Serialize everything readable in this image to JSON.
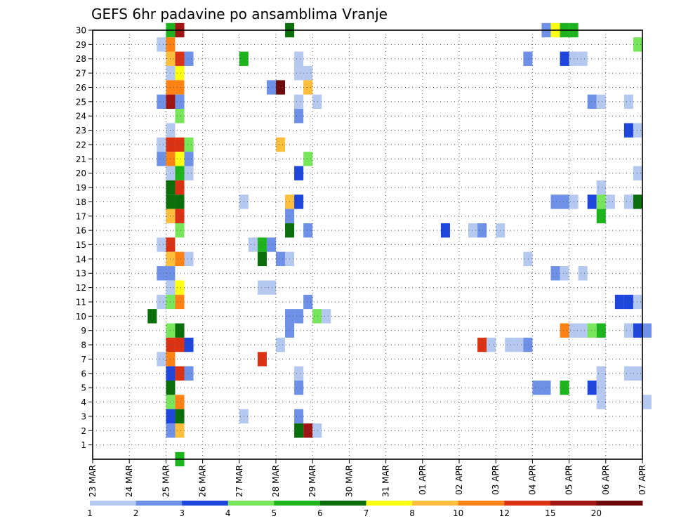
{
  "chart_data": {
    "type": "heatmap",
    "title": "GEFS 6hr padavine po ansamblima Vranje",
    "x_labels": [
      "23 MAR",
      "24 MAR",
      "25 MAR",
      "26 MAR",
      "27 MAR",
      "28 MAR",
      "29 MAR",
      "30 MAR",
      "31 MAR",
      "01 APR",
      "02 APR",
      "03 APR",
      "04 APR",
      "05 APR",
      "06 APR",
      "07 APR"
    ],
    "x_step": "6h",
    "y_labels": [
      "1",
      "2",
      "3",
      "4",
      "5",
      "6",
      "7",
      "8",
      "9",
      "10",
      "11",
      "12",
      "13",
      "14",
      "15",
      "16",
      "17",
      "18",
      "19",
      "20",
      "21",
      "22",
      "23",
      "24",
      "25",
      "26",
      "27",
      "28",
      "29",
      "30"
    ],
    "grid": "dotted",
    "legend": {
      "placement": "bottom",
      "labels": [
        "1",
        "2",
        "3",
        "4",
        "5",
        "6",
        "7",
        "8",
        "10",
        "12",
        "15",
        "20"
      ],
      "colors": [
        "#b4c8f0",
        "#6e90e6",
        "#1e46dc",
        "#78e65a",
        "#1eb41e",
        "#0a6e0a",
        "#ffff14",
        "#ffbe3c",
        "#ff8214",
        "#dc3214",
        "#a01414",
        "#6e0a0a"
      ]
    },
    "cells": [
      {
        "member": 30,
        "step": 8,
        "bin": 5
      },
      {
        "member": 30,
        "step": 9,
        "bin": 11
      },
      {
        "member": 30,
        "step": 21,
        "bin": 6
      },
      {
        "member": 30,
        "step": 49,
        "bin": 2
      },
      {
        "member": 30,
        "step": 50,
        "bin": 7
      },
      {
        "member": 30,
        "step": 51,
        "bin": 5
      },
      {
        "member": 30,
        "step": 52,
        "bin": 5
      },
      {
        "member": 29,
        "step": 7,
        "bin": 1
      },
      {
        "member": 29,
        "step": 8,
        "bin": 9
      },
      {
        "member": 29,
        "step": 59,
        "bin": 4
      },
      {
        "member": 28,
        "step": 8,
        "bin": 8
      },
      {
        "member": 28,
        "step": 9,
        "bin": 10
      },
      {
        "member": 28,
        "step": 10,
        "bin": 2
      },
      {
        "member": 28,
        "step": 16,
        "bin": 5
      },
      {
        "member": 28,
        "step": 22,
        "bin": 1
      },
      {
        "member": 28,
        "step": 47,
        "bin": 2
      },
      {
        "member": 28,
        "step": 51,
        "bin": 3
      },
      {
        "member": 28,
        "step": 52,
        "bin": 1
      },
      {
        "member": 28,
        "step": 53,
        "bin": 1
      },
      {
        "member": 27,
        "step": 8,
        "bin": 1
      },
      {
        "member": 27,
        "step": 9,
        "bin": 7
      },
      {
        "member": 27,
        "step": 22,
        "bin": 1
      },
      {
        "member": 27,
        "step": 23,
        "bin": 1
      },
      {
        "member": 26,
        "step": 8,
        "bin": 9
      },
      {
        "member": 26,
        "step": 9,
        "bin": 9
      },
      {
        "member": 26,
        "step": 19,
        "bin": 2
      },
      {
        "member": 26,
        "step": 20,
        "bin": 12
      },
      {
        "member": 26,
        "step": 23,
        "bin": 8
      },
      {
        "member": 25,
        "step": 7,
        "bin": 2
      },
      {
        "member": 25,
        "step": 8,
        "bin": 11
      },
      {
        "member": 25,
        "step": 9,
        "bin": 2
      },
      {
        "member": 25,
        "step": 22,
        "bin": 1
      },
      {
        "member": 25,
        "step": 24,
        "bin": 1
      },
      {
        "member": 25,
        "step": 54,
        "bin": 2
      },
      {
        "member": 25,
        "step": 55,
        "bin": 1
      },
      {
        "member": 25,
        "step": 58,
        "bin": 1
      },
      {
        "member": 24,
        "step": 9,
        "bin": 4
      },
      {
        "member": 24,
        "step": 22,
        "bin": 2
      },
      {
        "member": 23,
        "step": 8,
        "bin": 1
      },
      {
        "member": 23,
        "step": 58,
        "bin": 3
      },
      {
        "member": 23,
        "step": 59,
        "bin": 1
      },
      {
        "member": 22,
        "step": 7,
        "bin": 1
      },
      {
        "member": 22,
        "step": 8,
        "bin": 10
      },
      {
        "member": 22,
        "step": 9,
        "bin": 10
      },
      {
        "member": 22,
        "step": 10,
        "bin": 4
      },
      {
        "member": 22,
        "step": 20,
        "bin": 8
      },
      {
        "member": 21,
        "step": 7,
        "bin": 2
      },
      {
        "member": 21,
        "step": 8,
        "bin": 9
      },
      {
        "member": 21,
        "step": 9,
        "bin": 7
      },
      {
        "member": 21,
        "step": 10,
        "bin": 2
      },
      {
        "member": 21,
        "step": 23,
        "bin": 4
      },
      {
        "member": 20,
        "step": 8,
        "bin": 1
      },
      {
        "member": 20,
        "step": 9,
        "bin": 5
      },
      {
        "member": 20,
        "step": 10,
        "bin": 1
      },
      {
        "member": 20,
        "step": 22,
        "bin": 3
      },
      {
        "member": 20,
        "step": 59,
        "bin": 1
      },
      {
        "member": 19,
        "step": 8,
        "bin": 6
      },
      {
        "member": 19,
        "step": 9,
        "bin": 10
      },
      {
        "member": 19,
        "step": 55,
        "bin": 1
      },
      {
        "member": 18,
        "step": 8,
        "bin": 6
      },
      {
        "member": 18,
        "step": 9,
        "bin": 6
      },
      {
        "member": 18,
        "step": 16,
        "bin": 1
      },
      {
        "member": 18,
        "step": 21,
        "bin": 8
      },
      {
        "member": 18,
        "step": 22,
        "bin": 3
      },
      {
        "member": 18,
        "step": 50,
        "bin": 2
      },
      {
        "member": 18,
        "step": 51,
        "bin": 2
      },
      {
        "member": 18,
        "step": 52,
        "bin": 1
      },
      {
        "member": 18,
        "step": 54,
        "bin": 3
      },
      {
        "member": 18,
        "step": 55,
        "bin": 4
      },
      {
        "member": 18,
        "step": 56,
        "bin": 1
      },
      {
        "member": 18,
        "step": 58,
        "bin": 1
      },
      {
        "member": 18,
        "step": 59,
        "bin": 6
      },
      {
        "member": 17,
        "step": 8,
        "bin": 8
      },
      {
        "member": 17,
        "step": 9,
        "bin": 10
      },
      {
        "member": 17,
        "step": 21,
        "bin": 2
      },
      {
        "member": 17,
        "step": 55,
        "bin": 5
      },
      {
        "member": 16,
        "step": 9,
        "bin": 4
      },
      {
        "member": 16,
        "step": 21,
        "bin": 6
      },
      {
        "member": 16,
        "step": 23,
        "bin": 2
      },
      {
        "member": 16,
        "step": 38,
        "bin": 3
      },
      {
        "member": 16,
        "step": 41,
        "bin": 1
      },
      {
        "member": 16,
        "step": 42,
        "bin": 2
      },
      {
        "member": 16,
        "step": 44,
        "bin": 1
      },
      {
        "member": 15,
        "step": 7,
        "bin": 1
      },
      {
        "member": 15,
        "step": 8,
        "bin": 10
      },
      {
        "member": 15,
        "step": 17,
        "bin": 1
      },
      {
        "member": 15,
        "step": 18,
        "bin": 5
      },
      {
        "member": 15,
        "step": 19,
        "bin": 2
      },
      {
        "member": 14,
        "step": 8,
        "bin": 8
      },
      {
        "member": 14,
        "step": 9,
        "bin": 9
      },
      {
        "member": 14,
        "step": 10,
        "bin": 1
      },
      {
        "member": 14,
        "step": 18,
        "bin": 6
      },
      {
        "member": 14,
        "step": 20,
        "bin": 2
      },
      {
        "member": 14,
        "step": 21,
        "bin": 1
      },
      {
        "member": 14,
        "step": 47,
        "bin": 1
      },
      {
        "member": 13,
        "step": 7,
        "bin": 2
      },
      {
        "member": 13,
        "step": 8,
        "bin": 2
      },
      {
        "member": 13,
        "step": 50,
        "bin": 2
      },
      {
        "member": 13,
        "step": 51,
        "bin": 1
      },
      {
        "member": 13,
        "step": 53,
        "bin": 1
      },
      {
        "member": 12,
        "step": 8,
        "bin": 1
      },
      {
        "member": 12,
        "step": 9,
        "bin": 7
      },
      {
        "member": 12,
        "step": 18,
        "bin": 1
      },
      {
        "member": 12,
        "step": 19,
        "bin": 1
      },
      {
        "member": 11,
        "step": 7,
        "bin": 1
      },
      {
        "member": 11,
        "step": 8,
        "bin": 4
      },
      {
        "member": 11,
        "step": 9,
        "bin": 9
      },
      {
        "member": 11,
        "step": 23,
        "bin": 2
      },
      {
        "member": 11,
        "step": 57,
        "bin": 3
      },
      {
        "member": 11,
        "step": 58,
        "bin": 3
      },
      {
        "member": 11,
        "step": 59,
        "bin": 1
      },
      {
        "member": 10,
        "step": 6,
        "bin": 6
      },
      {
        "member": 10,
        "step": 21,
        "bin": 2
      },
      {
        "member": 10,
        "step": 22,
        "bin": 2
      },
      {
        "member": 10,
        "step": 24,
        "bin": 4
      },
      {
        "member": 10,
        "step": 25,
        "bin": 1
      },
      {
        "member": 9,
        "step": 8,
        "bin": 4
      },
      {
        "member": 9,
        "step": 9,
        "bin": 6
      },
      {
        "member": 9,
        "step": 21,
        "bin": 2
      },
      {
        "member": 9,
        "step": 51,
        "bin": 9
      },
      {
        "member": 9,
        "step": 52,
        "bin": 1
      },
      {
        "member": 9,
        "step": 53,
        "bin": 1
      },
      {
        "member": 9,
        "step": 54,
        "bin": 4
      },
      {
        "member": 9,
        "step": 55,
        "bin": 5
      },
      {
        "member": 9,
        "step": 58,
        "bin": 1
      },
      {
        "member": 9,
        "step": 59,
        "bin": 3
      },
      {
        "member": 9,
        "step": 60,
        "bin": 2
      },
      {
        "member": 8,
        "step": 8,
        "bin": 10
      },
      {
        "member": 8,
        "step": 9,
        "bin": 10
      },
      {
        "member": 8,
        "step": 10,
        "bin": 3
      },
      {
        "member": 8,
        "step": 20,
        "bin": 1
      },
      {
        "member": 8,
        "step": 42,
        "bin": 10
      },
      {
        "member": 8,
        "step": 43,
        "bin": 1
      },
      {
        "member": 8,
        "step": 45,
        "bin": 1
      },
      {
        "member": 8,
        "step": 46,
        "bin": 1
      },
      {
        "member": 8,
        "step": 47,
        "bin": 2
      },
      {
        "member": 7,
        "step": 7,
        "bin": 1
      },
      {
        "member": 7,
        "step": 8,
        "bin": 9
      },
      {
        "member": 7,
        "step": 18,
        "bin": 10
      },
      {
        "member": 6,
        "step": 8,
        "bin": 3
      },
      {
        "member": 6,
        "step": 9,
        "bin": 10
      },
      {
        "member": 6,
        "step": 10,
        "bin": 2
      },
      {
        "member": 6,
        "step": 22,
        "bin": 1
      },
      {
        "member": 6,
        "step": 55,
        "bin": 1
      },
      {
        "member": 6,
        "step": 58,
        "bin": 1
      },
      {
        "member": 6,
        "step": 59,
        "bin": 1
      },
      {
        "member": 5,
        "step": 8,
        "bin": 6
      },
      {
        "member": 5,
        "step": 22,
        "bin": 2
      },
      {
        "member": 5,
        "step": 48,
        "bin": 2
      },
      {
        "member": 5,
        "step": 49,
        "bin": 2
      },
      {
        "member": 5,
        "step": 51,
        "bin": 5
      },
      {
        "member": 5,
        "step": 54,
        "bin": 3
      },
      {
        "member": 5,
        "step": 55,
        "bin": 1
      },
      {
        "member": 4,
        "step": 8,
        "bin": 4
      },
      {
        "member": 4,
        "step": 9,
        "bin": 9
      },
      {
        "member": 4,
        "step": 55,
        "bin": 1
      },
      {
        "member": 4,
        "step": 60,
        "bin": 1
      },
      {
        "member": 3,
        "step": 8,
        "bin": 3
      },
      {
        "member": 3,
        "step": 9,
        "bin": 6
      },
      {
        "member": 3,
        "step": 16,
        "bin": 1
      },
      {
        "member": 3,
        "step": 22,
        "bin": 2
      },
      {
        "member": 2,
        "step": 8,
        "bin": 2
      },
      {
        "member": 2,
        "step": 9,
        "bin": 8
      },
      {
        "member": 2,
        "step": 22,
        "bin": 6
      },
      {
        "member": 2,
        "step": 23,
        "bin": 11
      },
      {
        "member": 2,
        "step": 24,
        "bin": 1
      },
      {
        "member": 0,
        "step": 9,
        "bin": 5
      }
    ]
  }
}
